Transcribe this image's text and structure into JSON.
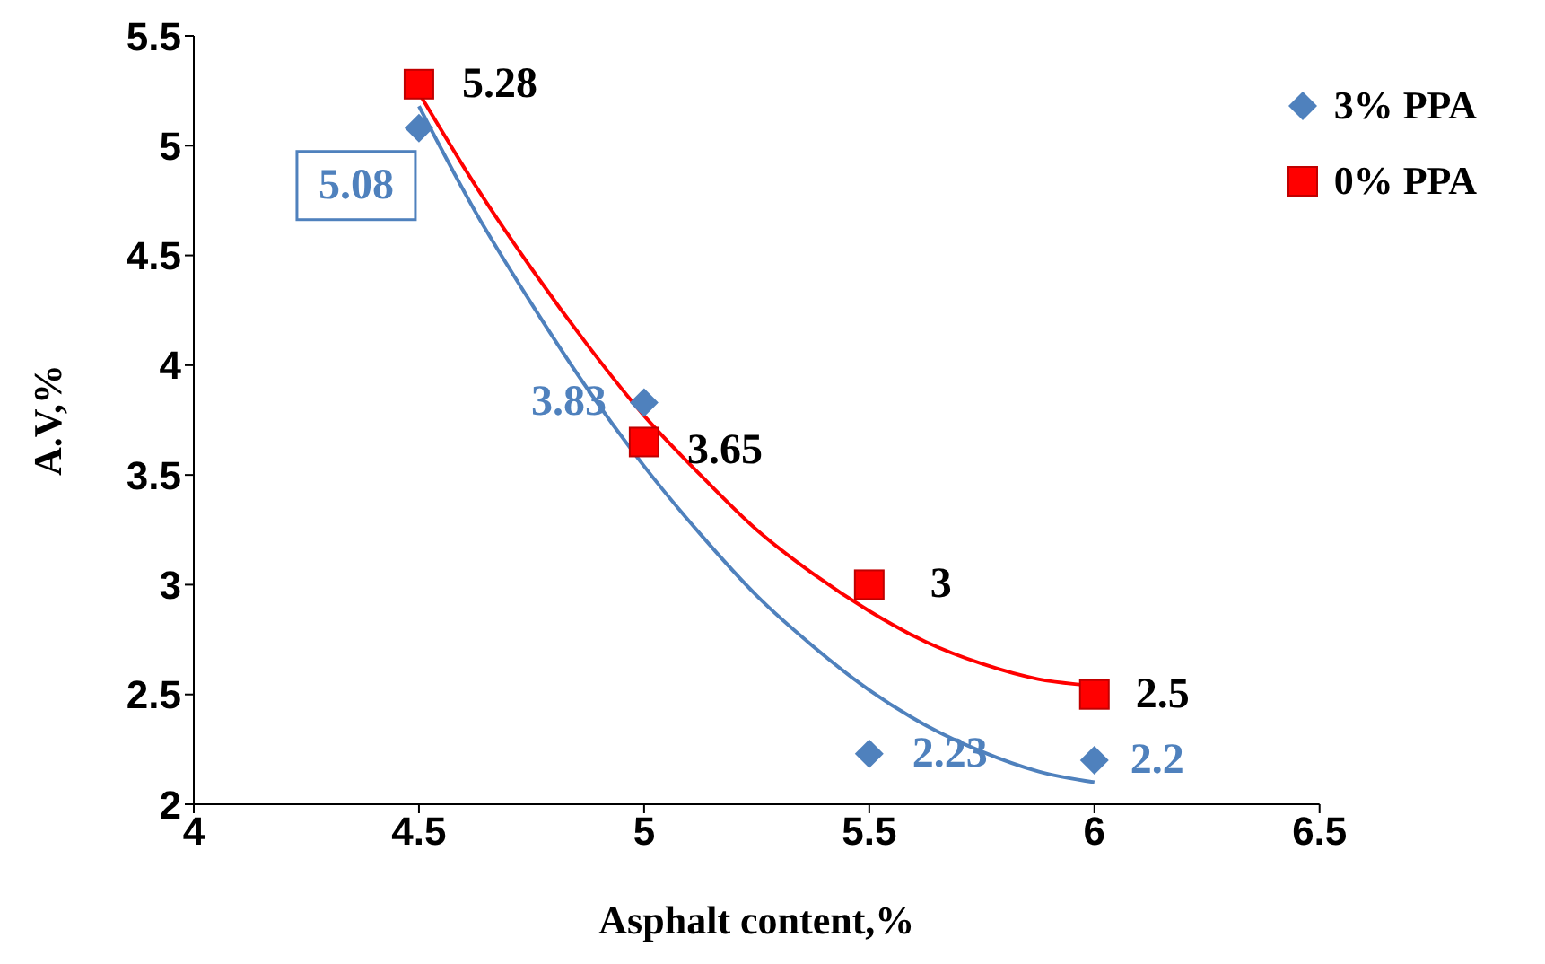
{
  "chart_data": {
    "type": "scatter",
    "xlabel": "Asphalt content,%",
    "ylabel": "A.V,%",
    "xlim": [
      4,
      6.5
    ],
    "xticks": [
      4,
      4.5,
      5,
      5.5,
      6,
      6.5
    ],
    "ylim": [
      2,
      5.5
    ],
    "yticks": [
      2,
      2.5,
      3,
      3.5,
      4,
      4.5,
      5,
      5.5
    ],
    "grid": false,
    "legend": "top right",
    "series": [
      {
        "name": "3% PPA",
        "color": "#4f81bd",
        "marker": "diamond",
        "x": [
          4.5,
          5,
          5.5,
          6
        ],
        "values": [
          5.08,
          3.83,
          2.23,
          2.2
        ],
        "value_labels": [
          "5.08",
          "3.83",
          "2.23",
          "2.2"
        ]
      },
      {
        "name": "0% PPA",
        "color": "#ff0000",
        "marker": "square",
        "x": [
          4.5,
          5,
          5.5,
          6
        ],
        "values": [
          5.28,
          3.65,
          3,
          2.5
        ],
        "value_labels": [
          "5.28",
          "3.65",
          "3",
          "2.5"
        ]
      },
      {
        "type": "line",
        "color": "#4f81bd",
        "marker": "none",
        "x": [
          4.5,
          4.625,
          4.75,
          4.875,
          5,
          5.125,
          5.25,
          5.375,
          5.5,
          5.625,
          5.75,
          5.875,
          6
        ],
        "values": [
          5.18,
          4.7,
          4.28,
          3.89,
          3.54,
          3.23,
          2.95,
          2.72,
          2.52,
          2.36,
          2.24,
          2.15,
          2.1
        ]
      },
      {
        "type": "line",
        "color": "#ff0000",
        "marker": "none",
        "x": [
          4.5,
          4.625,
          4.75,
          4.875,
          5,
          5.125,
          5.25,
          5.375,
          5.5,
          5.625,
          5.75,
          5.875,
          6
        ],
        "values": [
          5.24,
          4.82,
          4.44,
          4.09,
          3.77,
          3.5,
          3.25,
          3.05,
          2.88,
          2.74,
          2.64,
          2.57,
          2.54
        ]
      }
    ]
  }
}
